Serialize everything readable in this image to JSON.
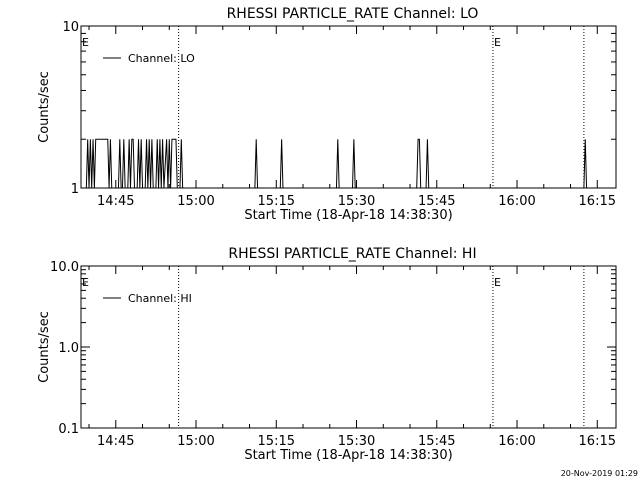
{
  "stamp": "20-Nov-2019 01:29",
  "chart_data": [
    {
      "type": "line",
      "title": "RHESSI PARTICLE_RATE Channel: LO",
      "ylabel": "Counts/sec",
      "xlabel": "Start Time (18-Apr-18 14:38:30)",
      "yscale": "log",
      "ylim": [
        1,
        10
      ],
      "ytick_labels": [
        "1",
        "10"
      ],
      "xlim": [
        "14:38:30",
        "16:18:30"
      ],
      "xtick_labels": [
        "14:45",
        "15:00",
        "15:15",
        "15:30",
        "15:45",
        "16:00",
        "16:15"
      ],
      "legend": {
        "placement": "top-left",
        "entries": [
          "Channel: LO"
        ]
      },
      "markers": [
        {
          "time": "14:38:30",
          "label": "E"
        },
        {
          "time": "15:55:30",
          "label": "E"
        }
      ],
      "dotted_lines": [
        "14:56:45",
        "15:55:30",
        "16:12:30"
      ],
      "series": [
        {
          "name": "Channel: LO",
          "points": [
            [
              "14:38:30",
              1
            ],
            [
              "14:39:30",
              1
            ],
            [
              "14:39:45",
              2
            ],
            [
              "14:40:00",
              1
            ],
            [
              "14:40:15",
              2
            ],
            [
              "14:40:30",
              1
            ],
            [
              "14:40:45",
              2
            ],
            [
              "14:41:00",
              1
            ],
            [
              "14:41:15",
              2
            ],
            [
              "14:43:30",
              2
            ],
            [
              "14:43:45",
              1
            ],
            [
              "14:44:00",
              2
            ],
            [
              "14:44:15",
              1
            ],
            [
              "14:45:30",
              1
            ],
            [
              "14:45:45",
              2
            ],
            [
              "14:46:00",
              1
            ],
            [
              "14:46:15",
              1
            ],
            [
              "14:46:30",
              2
            ],
            [
              "14:46:45",
              1
            ],
            [
              "14:47:15",
              1
            ],
            [
              "14:47:30",
              2
            ],
            [
              "14:47:45",
              1
            ],
            [
              "14:48:00",
              2
            ],
            [
              "14:48:15",
              2
            ],
            [
              "14:48:30",
              1
            ],
            [
              "14:49:00",
              1
            ],
            [
              "14:49:15",
              2
            ],
            [
              "14:49:30",
              1
            ],
            [
              "14:49:45",
              2
            ],
            [
              "14:50:00",
              1
            ],
            [
              "14:50:30",
              1
            ],
            [
              "14:50:45",
              2
            ],
            [
              "14:51:00",
              1
            ],
            [
              "14:51:15",
              2
            ],
            [
              "14:51:30",
              1
            ],
            [
              "14:51:45",
              2
            ],
            [
              "14:52:00",
              1
            ],
            [
              "14:52:30",
              1
            ],
            [
              "14:52:45",
              2
            ],
            [
              "14:53:00",
              1
            ],
            [
              "14:53:15",
              2
            ],
            [
              "14:53:30",
              1
            ],
            [
              "14:53:45",
              2
            ],
            [
              "14:54:00",
              1
            ],
            [
              "14:54:30",
              2
            ],
            [
              "14:54:45",
              1
            ],
            [
              "14:55:00",
              2
            ],
            [
              "14:55:15",
              1
            ],
            [
              "14:55:30",
              2
            ],
            [
              "14:56:15",
              2
            ],
            [
              "14:56:30",
              1
            ],
            [
              "14:57:00",
              1
            ],
            [
              "14:57:15",
              2
            ],
            [
              "14:57:30",
              1
            ],
            [
              "15:11:00",
              1
            ],
            [
              "15:11:15",
              2
            ],
            [
              "15:11:30",
              1
            ],
            [
              "15:15:45",
              1
            ],
            [
              "15:16:00",
              2
            ],
            [
              "15:16:15",
              1
            ],
            [
              "15:26:15",
              1
            ],
            [
              "15:26:30",
              2
            ],
            [
              "15:26:45",
              1
            ],
            [
              "15:29:15",
              1
            ],
            [
              "15:29:30",
              2
            ],
            [
              "15:29:45",
              1
            ],
            [
              "15:41:15",
              1
            ],
            [
              "15:41:30",
              2
            ],
            [
              "15:41:45",
              2
            ],
            [
              "15:42:00",
              1
            ],
            [
              "15:43:00",
              1
            ],
            [
              "15:43:15",
              2
            ],
            [
              "15:43:30",
              1
            ],
            [
              "16:12:30",
              1
            ],
            [
              "16:12:45",
              2
            ],
            [
              "16:13:00",
              1
            ],
            [
              "16:18:30",
              1
            ]
          ]
        }
      ]
    },
    {
      "type": "line",
      "title": "RHESSI PARTICLE_RATE Channel: HI",
      "ylabel": "Counts/sec",
      "xlabel": "Start Time (18-Apr-18 14:38:30)",
      "yscale": "log",
      "ylim": [
        0.1,
        10
      ],
      "ytick_labels": [
        "0.1",
        "1.0",
        "10.0"
      ],
      "xlim": [
        "14:38:30",
        "16:18:30"
      ],
      "xtick_labels": [
        "14:45",
        "15:00",
        "15:15",
        "15:30",
        "15:45",
        "16:00",
        "16:15"
      ],
      "legend": {
        "placement": "top-left",
        "entries": [
          "Channel: HI"
        ]
      },
      "markers": [
        {
          "time": "14:38:30",
          "label": "E"
        },
        {
          "time": "15:55:30",
          "label": "E"
        }
      ],
      "dotted_lines": [
        "14:56:45",
        "15:55:30",
        "16:12:30"
      ],
      "series": [
        {
          "name": "Channel: HI",
          "points": []
        }
      ]
    }
  ]
}
